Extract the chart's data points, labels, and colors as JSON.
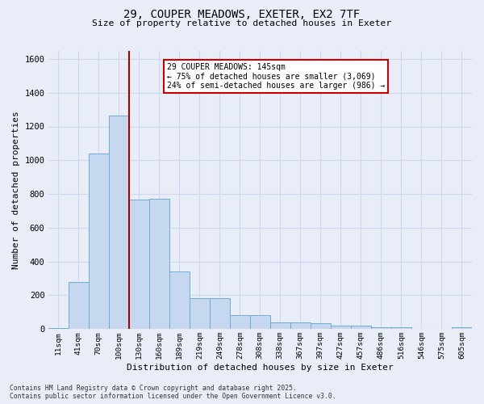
{
  "title_line1": "29, COUPER MEADOWS, EXETER, EX2 7TF",
  "title_line2": "Size of property relative to detached houses in Exeter",
  "xlabel": "Distribution of detached houses by size in Exeter",
  "ylabel": "Number of detached properties",
  "categories": [
    "11sqm",
    "41sqm",
    "70sqm",
    "100sqm",
    "130sqm",
    "160sqm",
    "189sqm",
    "219sqm",
    "249sqm",
    "278sqm",
    "308sqm",
    "338sqm",
    "367sqm",
    "397sqm",
    "427sqm",
    "457sqm",
    "486sqm",
    "516sqm",
    "546sqm",
    "575sqm",
    "605sqm"
  ],
  "values": [
    5,
    280,
    1040,
    1265,
    765,
    770,
    340,
    185,
    185,
    80,
    80,
    40,
    38,
    35,
    22,
    18,
    12,
    12,
    2,
    2,
    8
  ],
  "bar_color": "#c5d8f0",
  "bar_edge_color": "#6aaed6",
  "vline_x": 3.5,
  "vline_color": "#aa0000",
  "annotation_text": "29 COUPER MEADOWS: 145sqm\n← 75% of detached houses are smaller (3,069)\n24% of semi-detached houses are larger (986) →",
  "annotation_box_facecolor": "#ffffff",
  "annotation_box_edgecolor": "#cc0000",
  "ylim": [
    0,
    1650
  ],
  "yticks": [
    0,
    200,
    400,
    600,
    800,
    1000,
    1200,
    1400,
    1600
  ],
  "bg_color": "#e8edf8",
  "grid_color": "#d0d8ee",
  "footnote_line1": "Contains HM Land Registry data © Crown copyright and database right 2025.",
  "footnote_line2": "Contains public sector information licensed under the Open Government Licence v3.0."
}
